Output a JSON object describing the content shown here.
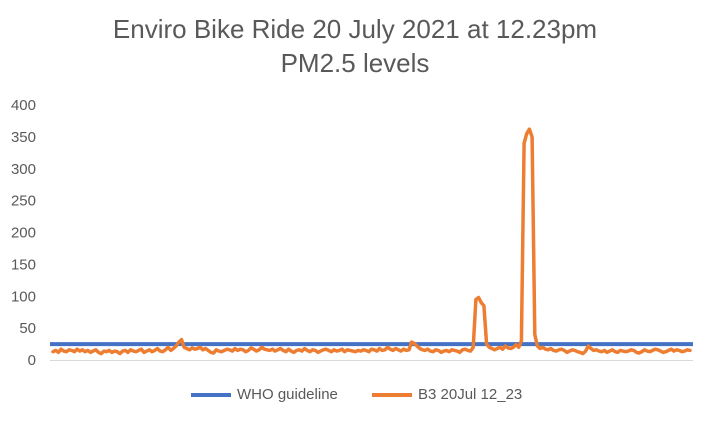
{
  "chart_data": {
    "type": "line",
    "title_line1": "Enviro Bike Ride 20 July 2021 at 12.23pm",
    "title_line2": "PM2.5 levels",
    "xlabel": "",
    "ylabel": "",
    "ylim": [
      0,
      400
    ],
    "yticks": [
      "0",
      "50",
      "100",
      "150",
      "200",
      "250",
      "300",
      "350",
      "400"
    ],
    "grid": false,
    "legend_position": "bottom",
    "colors": {
      "who": "#4472C4",
      "b3": "#ED7D31",
      "axis": "#D9D9D9",
      "text": "#595959"
    },
    "series": [
      {
        "name": "WHO guideline",
        "values": [
          25,
          25
        ]
      },
      {
        "name": "B3 20Jul 12_23",
        "values": [
          13,
          15,
          12,
          17,
          14,
          13,
          16,
          15,
          13,
          17,
          14,
          16,
          13,
          15,
          12,
          14,
          16,
          12,
          10,
          14,
          13,
          15,
          12,
          14,
          13,
          10,
          14,
          15,
          12,
          16,
          14,
          13,
          15,
          17,
          12,
          14,
          16,
          13,
          15,
          18,
          14,
          13,
          16,
          20,
          15,
          18,
          22,
          28,
          32,
          20,
          18,
          16,
          19,
          17,
          18,
          20,
          16,
          18,
          15,
          12,
          11,
          16,
          14,
          13,
          15,
          17,
          16,
          14,
          18,
          15,
          17,
          16,
          13,
          15,
          19,
          17,
          14,
          16,
          20,
          17,
          16,
          15,
          17,
          14,
          16,
          18,
          15,
          13,
          17,
          14,
          12,
          15,
          16,
          14,
          18,
          15,
          13,
          16,
          15,
          12,
          14,
          16,
          17,
          15,
          13,
          16,
          14,
          15,
          17,
          13,
          16,
          15,
          14,
          13,
          15,
          14,
          16,
          15,
          13,
          17,
          16,
          14,
          18,
          15,
          16,
          20,
          17,
          15,
          18,
          16,
          14,
          17,
          15,
          16,
          28,
          26,
          22,
          18,
          16,
          15,
          17,
          14,
          13,
          16,
          15,
          12,
          14,
          15,
          13,
          16,
          15,
          14,
          12,
          16,
          17,
          15,
          14,
          20,
          95,
          98,
          90,
          85,
          25,
          20,
          18,
          16,
          18,
          20,
          17,
          22,
          19,
          18,
          20,
          24,
          20,
          30,
          340,
          355,
          362,
          350,
          40,
          22,
          18,
          20,
          17,
          16,
          18,
          15,
          14,
          16,
          17,
          15,
          12,
          14,
          16,
          15,
          13,
          12,
          10,
          14,
          22,
          18,
          15,
          16,
          14,
          13,
          15,
          12,
          14,
          16,
          13,
          12,
          15,
          14,
          13,
          14,
          16,
          15,
          12,
          11,
          13,
          16,
          14,
          13,
          15,
          17,
          16,
          14,
          12,
          13,
          15,
          17,
          14,
          16,
          15,
          13,
          14,
          16,
          15
        ]
      }
    ]
  }
}
